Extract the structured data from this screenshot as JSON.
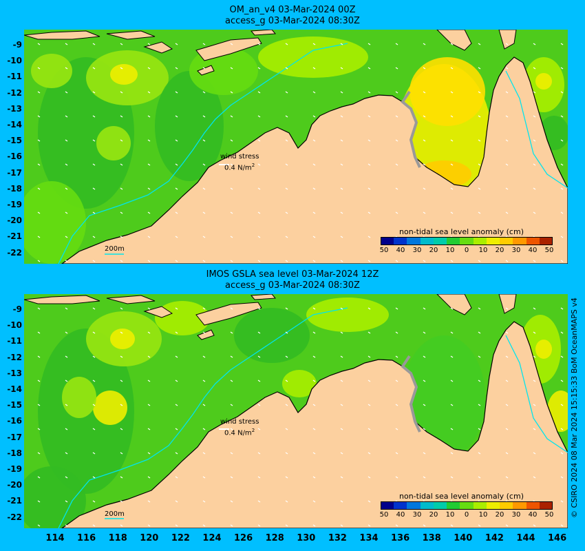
{
  "panels": [
    {
      "title_line1": "OM_an_v4  03-Mar-2024 00Z",
      "title_line2": "access_g 03-Mar-2024 08:30Z",
      "wind_label": "wind stress",
      "wind_scale": "0.4 N/m",
      "wind_scale_sup": "2",
      "isobath_label": "200m",
      "colorbar_title": "non-tidal sea level anomaly (cm)"
    },
    {
      "title_line1": "IMOS GSLA sea level  03-Mar-2024 12Z",
      "title_line2": "access_g 03-Mar-2024 08:30Z",
      "wind_label": "wind stress",
      "wind_scale": "0.4 N/m",
      "wind_scale_sup": "2",
      "isobath_label": "200m",
      "colorbar_title": "non-tidal sea level anomaly (cm)"
    }
  ],
  "colorbar": {
    "ticks": [
      "50",
      "40",
      "30",
      "20",
      "10",
      "0",
      "10",
      "20",
      "30",
      "40",
      "50"
    ],
    "colors": [
      "#00008b",
      "#0033cc",
      "#0077dd",
      "#00bbcc",
      "#00ccaa",
      "#22cc33",
      "#66dd11",
      "#aaee00",
      "#eeee00",
      "#ffcc00",
      "#ff9900",
      "#ee5500",
      "#aa2200"
    ]
  },
  "lat_labels": [
    "-9",
    "-10",
    "-11",
    "-12",
    "-13",
    "-14",
    "-15",
    "-16",
    "-17",
    "-18",
    "-19",
    "-20",
    "-21",
    "-22"
  ],
  "lon_labels": [
    "114",
    "116",
    "118",
    "120",
    "122",
    "124",
    "126",
    "128",
    "130",
    "132",
    "134",
    "136",
    "138",
    "140",
    "142",
    "144",
    "146"
  ],
  "credit": "© CSIRO 2024   08 Mar 2024 15:15:33 BoM OceanMAPS v4",
  "colors": {
    "background": "#00bfff",
    "land": "#fcd09f",
    "ocean_base": "#4ecb1c",
    "coast": "#000000",
    "isobath": "#00e5ee"
  }
}
